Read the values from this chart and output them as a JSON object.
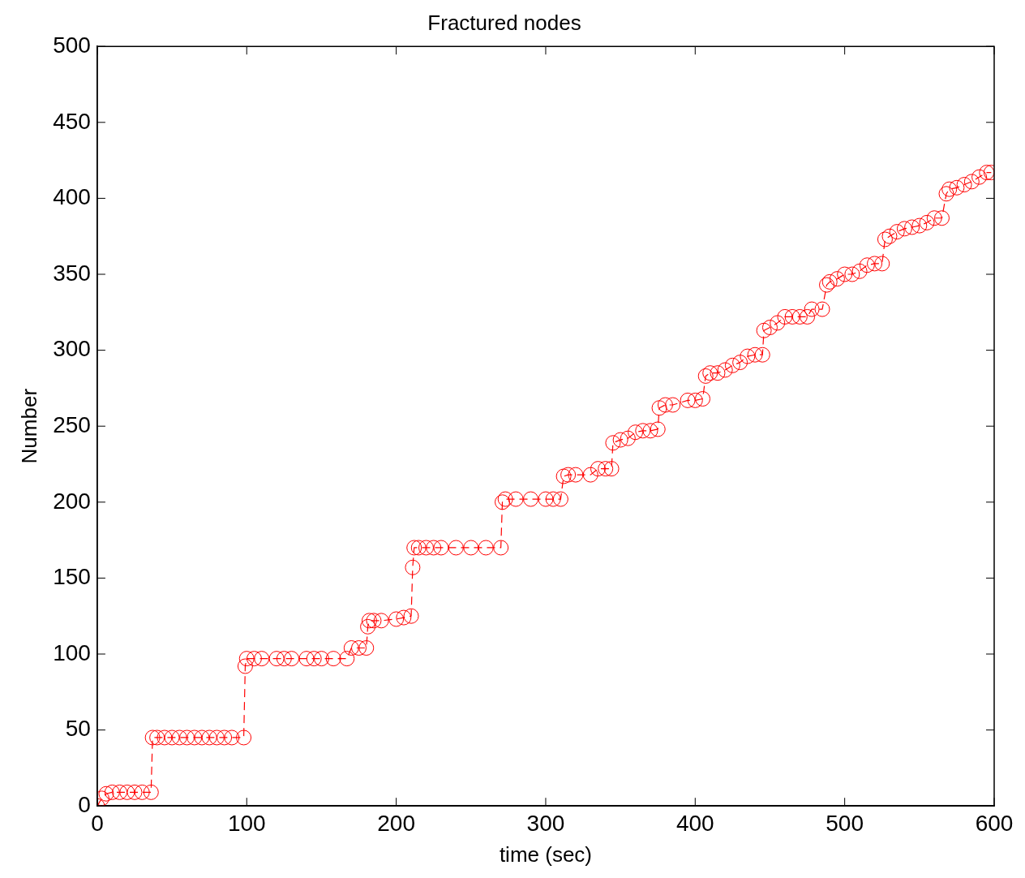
{
  "chart_data": {
    "type": "line",
    "title": "Fractured nodes",
    "xlabel": "time (sec)",
    "ylabel": "Number",
    "xlim": [
      0,
      600
    ],
    "xticks": [
      0,
      100,
      200,
      300,
      400,
      500,
      600
    ],
    "ylim": [
      0,
      500
    ],
    "yticks": [
      0,
      50,
      100,
      150,
      200,
      250,
      300,
      350,
      400,
      450,
      500
    ],
    "grid": false,
    "legend": false,
    "marker": "circle",
    "line_style": "dashed",
    "series": [
      {
        "color": "#ff0000",
        "x": [
          0,
          3,
          6,
          10,
          15,
          20,
          25,
          30,
          36,
          37,
          40,
          45,
          50,
          55,
          60,
          65,
          70,
          75,
          80,
          85,
          90,
          98,
          99,
          100,
          105,
          110,
          120,
          125,
          130,
          140,
          145,
          150,
          158,
          167,
          170,
          175,
          180,
          181,
          182,
          185,
          190,
          200,
          205,
          210,
          211,
          212,
          215,
          220,
          225,
          230,
          240,
          250,
          260,
          270,
          271,
          273,
          280,
          290,
          300,
          305,
          310,
          312,
          315,
          320,
          330,
          335,
          340,
          344,
          345,
          350,
          355,
          360,
          365,
          370,
          375,
          376,
          380,
          385,
          395,
          400,
          405,
          407,
          410,
          415,
          420,
          425,
          430,
          435,
          440,
          445,
          446,
          450,
          455,
          460,
          465,
          470,
          475,
          478,
          485,
          488,
          490,
          495,
          500,
          505,
          510,
          515,
          520,
          525,
          527,
          530,
          535,
          540,
          545,
          550,
          555,
          560,
          565,
          568,
          570,
          575,
          580,
          585,
          590,
          595,
          598
        ],
        "values": [
          0,
          5,
          8,
          9,
          9,
          9,
          9,
          9,
          9,
          45,
          45,
          45,
          45,
          45,
          45,
          45,
          45,
          45,
          45,
          45,
          45,
          45,
          92,
          97,
          97,
          97,
          97,
          97,
          97,
          97,
          97,
          97,
          97,
          97,
          104,
          104,
          104,
          118,
          122,
          122,
          122,
          123,
          124,
          125,
          157,
          170,
          170,
          170,
          170,
          170,
          170,
          170,
          170,
          170,
          200,
          202,
          202,
          202,
          202,
          202,
          202,
          217,
          218,
          218,
          218,
          222,
          222,
          222,
          239,
          241,
          242,
          246,
          247,
          247,
          248,
          262,
          264,
          264,
          267,
          267,
          268,
          283,
          285,
          285,
          287,
          290,
          292,
          296,
          297,
          297,
          313,
          315,
          318,
          322,
          322,
          322,
          322,
          327,
          327,
          343,
          345,
          347,
          350,
          350,
          352,
          356,
          357,
          357,
          373,
          375,
          378,
          380,
          381,
          382,
          384,
          387,
          387,
          403,
          406,
          407,
          409,
          411,
          414,
          417,
          417
        ]
      }
    ]
  }
}
